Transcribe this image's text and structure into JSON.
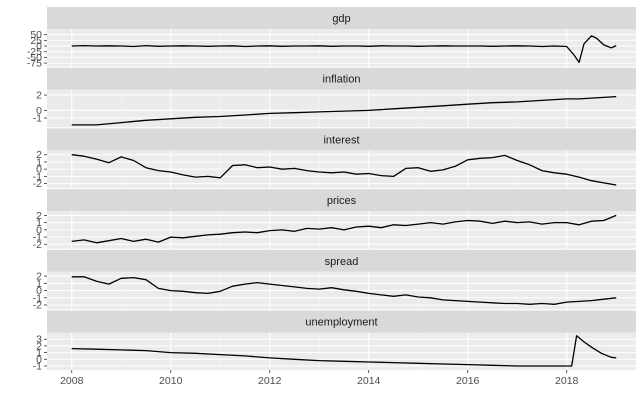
{
  "chart_data": {
    "type": "line",
    "layout": "faceted, free y scales, shared x axis",
    "x_ticks": [
      2008,
      2010,
      2012,
      2014,
      2016,
      2018
    ],
    "xlim": [
      2007.5,
      2019.4
    ],
    "grid": true,
    "panels": [
      {
        "name": "gdp",
        "yticks": [
          50,
          25,
          0,
          -25,
          -50,
          -75
        ],
        "ylim": [
          -90,
          75
        ],
        "x": [
          2008.0,
          2008.25,
          2008.5,
          2008.75,
          2009.0,
          2009.25,
          2009.5,
          2009.75,
          2010.0,
          2010.25,
          2010.5,
          2010.75,
          2011.0,
          2011.25,
          2011.5,
          2011.75,
          2012.0,
          2012.25,
          2012.5,
          2012.75,
          2013.0,
          2013.25,
          2013.5,
          2013.75,
          2014.0,
          2014.25,
          2014.5,
          2014.75,
          2015.0,
          2015.25,
          2015.5,
          2015.75,
          2016.0,
          2016.25,
          2016.5,
          2016.75,
          2017.0,
          2017.25,
          2017.5,
          2017.75,
          2018.0,
          2018.15,
          2018.25,
          2018.35,
          2018.5,
          2018.6,
          2018.75,
          2018.9,
          2019.0
        ],
        "y": [
          0,
          2,
          0,
          1,
          0,
          -2,
          2,
          -1,
          0,
          1,
          0,
          -1,
          0,
          1,
          -2,
          0,
          1,
          -1,
          0,
          0,
          1,
          -1,
          0,
          0,
          -1,
          1,
          0,
          0,
          -1,
          0,
          1,
          0,
          0,
          0,
          -1,
          0,
          1,
          0,
          -2,
          0,
          -2,
          -40,
          -72,
          10,
          45,
          35,
          5,
          -8,
          2
        ]
      },
      {
        "name": "inflation",
        "yticks": [
          2,
          0,
          -1
        ],
        "ylim": [
          -2.2,
          2.7
        ],
        "x": [
          2008.0,
          2008.5,
          2009.0,
          2009.5,
          2010.0,
          2010.5,
          2011.0,
          2011.5,
          2012.0,
          2012.5,
          2013.0,
          2013.5,
          2014.0,
          2014.5,
          2015.0,
          2015.5,
          2016.0,
          2016.5,
          2017.0,
          2017.5,
          2018.0,
          2018.25,
          2018.5,
          2018.75,
          2019.0
        ],
        "y": [
          -1.9,
          -1.9,
          -1.6,
          -1.3,
          -1.1,
          -0.9,
          -0.8,
          -0.6,
          -0.4,
          -0.3,
          -0.2,
          -0.1,
          0.0,
          0.2,
          0.4,
          0.6,
          0.8,
          1.0,
          1.1,
          1.3,
          1.5,
          1.5,
          1.6,
          1.7,
          1.8
        ]
      },
      {
        "name": "interest",
        "yticks": [
          2,
          1,
          0,
          -1,
          -2
        ],
        "ylim": [
          -2.6,
          2.6
        ],
        "x": [
          2008.0,
          2008.25,
          2008.5,
          2008.75,
          2009.0,
          2009.25,
          2009.5,
          2009.75,
          2010.0,
          2010.25,
          2010.5,
          2010.75,
          2011.0,
          2011.25,
          2011.5,
          2011.75,
          2012.0,
          2012.25,
          2012.5,
          2012.75,
          2013.0,
          2013.25,
          2013.5,
          2013.75,
          2014.0,
          2014.25,
          2014.5,
          2014.75,
          2015.0,
          2015.25,
          2015.5,
          2015.75,
          2016.0,
          2016.25,
          2016.5,
          2016.75,
          2017.0,
          2017.25,
          2017.5,
          2017.75,
          2018.0,
          2018.25,
          2018.5,
          2018.75,
          2019.0
        ],
        "y": [
          2.0,
          1.8,
          1.4,
          0.9,
          1.7,
          1.2,
          0.2,
          -0.2,
          -0.4,
          -0.8,
          -1.1,
          -1.0,
          -1.2,
          0.5,
          0.6,
          0.2,
          0.3,
          0.0,
          0.1,
          -0.2,
          -0.4,
          -0.5,
          -0.4,
          -0.7,
          -0.6,
          -0.9,
          -1.0,
          0.1,
          0.2,
          -0.3,
          -0.1,
          0.4,
          1.3,
          1.5,
          1.6,
          1.9,
          1.2,
          0.6,
          -0.2,
          -0.5,
          -0.7,
          -1.1,
          -1.6,
          -1.9,
          -2.2
        ]
      },
      {
        "name": "prices",
        "yticks": [
          2,
          1,
          0,
          -1,
          -2
        ],
        "ylim": [
          -2.6,
          2.6
        ],
        "x": [
          2008.0,
          2008.25,
          2008.5,
          2008.75,
          2009.0,
          2009.25,
          2009.5,
          2009.75,
          2010.0,
          2010.25,
          2010.5,
          2010.75,
          2011.0,
          2011.25,
          2011.5,
          2011.75,
          2012.0,
          2012.25,
          2012.5,
          2012.75,
          2013.0,
          2013.25,
          2013.5,
          2013.75,
          2014.0,
          2014.25,
          2014.5,
          2014.75,
          2015.0,
          2015.25,
          2015.5,
          2015.75,
          2016.0,
          2016.25,
          2016.5,
          2016.75,
          2017.0,
          2017.25,
          2017.5,
          2017.75,
          2018.0,
          2018.25,
          2018.5,
          2018.75,
          2019.0
        ],
        "y": [
          -1.6,
          -1.4,
          -1.8,
          -1.5,
          -1.2,
          -1.6,
          -1.3,
          -1.7,
          -1.0,
          -1.1,
          -0.9,
          -0.7,
          -0.6,
          -0.4,
          -0.3,
          -0.4,
          -0.1,
          0.0,
          -0.2,
          0.2,
          0.1,
          0.3,
          0.0,
          0.4,
          0.5,
          0.3,
          0.7,
          0.6,
          0.8,
          1.0,
          0.8,
          1.1,
          1.3,
          1.2,
          0.9,
          1.2,
          1.0,
          1.1,
          0.8,
          1.0,
          1.0,
          0.7,
          1.2,
          1.3,
          2.0
        ]
      },
      {
        "name": "spread",
        "yticks": [
          2,
          1,
          0,
          -1,
          -2
        ],
        "ylim": [
          -2.6,
          2.6
        ],
        "x": [
          2008.0,
          2008.25,
          2008.5,
          2008.75,
          2009.0,
          2009.25,
          2009.5,
          2009.75,
          2010.0,
          2010.25,
          2010.5,
          2010.75,
          2011.0,
          2011.25,
          2011.5,
          2011.75,
          2012.0,
          2012.25,
          2012.5,
          2012.75,
          2013.0,
          2013.25,
          2013.5,
          2013.75,
          2014.0,
          2014.25,
          2014.5,
          2014.75,
          2015.0,
          2015.25,
          2015.5,
          2015.75,
          2016.0,
          2016.25,
          2016.5,
          2016.75,
          2017.0,
          2017.25,
          2017.5,
          2017.75,
          2018.0,
          2018.25,
          2018.5,
          2018.75,
          2019.0
        ],
        "y": [
          1.9,
          1.9,
          1.3,
          0.9,
          1.7,
          1.8,
          1.5,
          0.3,
          0.0,
          -0.1,
          -0.3,
          -0.4,
          -0.1,
          0.6,
          0.9,
          1.1,
          0.9,
          0.7,
          0.5,
          0.3,
          0.2,
          0.4,
          0.1,
          -0.1,
          -0.4,
          -0.6,
          -0.8,
          -0.6,
          -0.9,
          -1.0,
          -1.3,
          -1.4,
          -1.5,
          -1.6,
          -1.7,
          -1.8,
          -1.8,
          -1.9,
          -1.8,
          -1.9,
          -1.6,
          -1.5,
          -1.4,
          -1.2,
          -1.0
        ]
      },
      {
        "name": "unemployment",
        "yticks": [
          3,
          2,
          1,
          0,
          -1
        ],
        "ylim": [
          -1.6,
          4.0
        ],
        "x": [
          2008.0,
          2008.5,
          2009.0,
          2009.5,
          2010.0,
          2010.5,
          2011.0,
          2011.5,
          2012.0,
          2012.5,
          2013.0,
          2013.5,
          2014.0,
          2014.5,
          2015.0,
          2015.5,
          2016.0,
          2016.5,
          2017.0,
          2017.5,
          2017.9,
          2018.1,
          2018.2,
          2018.35,
          2018.5,
          2018.7,
          2018.9,
          2019.0
        ],
        "y": [
          1.6,
          1.5,
          1.4,
          1.3,
          1.0,
          0.9,
          0.7,
          0.5,
          0.2,
          0.0,
          -0.2,
          -0.3,
          -0.4,
          -0.5,
          -0.6,
          -0.7,
          -0.8,
          -0.9,
          -1.0,
          -1.0,
          -1.0,
          -1.0,
          3.5,
          2.6,
          1.8,
          0.9,
          0.3,
          0.2
        ]
      }
    ]
  }
}
